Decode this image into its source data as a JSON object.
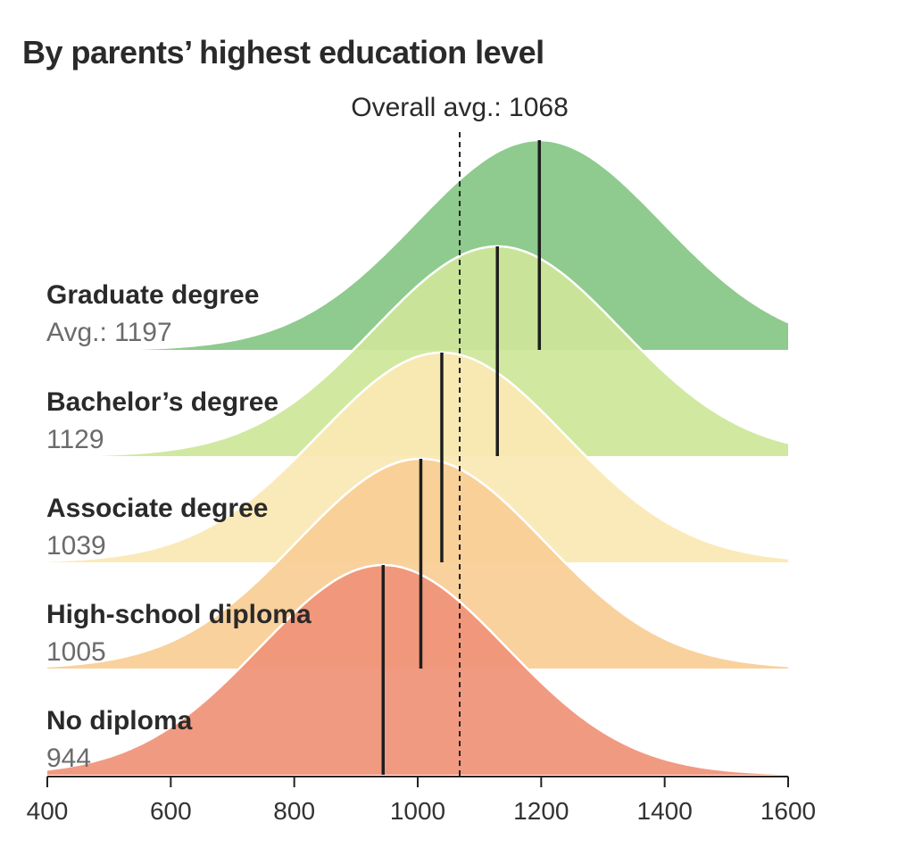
{
  "title": "By parents’ highest education level",
  "chart_data": {
    "type": "area",
    "title": "By parents’ highest education level",
    "xlim": [
      400,
      1600
    ],
    "x_ticks": [
      400,
      600,
      800,
      1000,
      1200,
      1400,
      1600
    ],
    "overall_avg": {
      "label": "Overall avg.: 1068",
      "value": 1068
    },
    "series": [
      {
        "name": "Graduate degree",
        "avg_text": "Avg.: 1197",
        "avg": 1197,
        "color": "#86c685"
      },
      {
        "name": "Bachelor’s degree",
        "avg_text": "1129",
        "avg": 1129,
        "color": "#cde69a"
      },
      {
        "name": "Associate degree",
        "avg_text": "1039",
        "avg": 1039,
        "color": "#fbe8b4"
      },
      {
        "name": "High-school diploma",
        "avg_text": "1005",
        "avg": 1005,
        "color": "#f9cd96"
      },
      {
        "name": "No diploma",
        "avg_text": "944",
        "avg": 944,
        "color": "#f09278"
      }
    ],
    "grid": false,
    "legend": "none"
  }
}
